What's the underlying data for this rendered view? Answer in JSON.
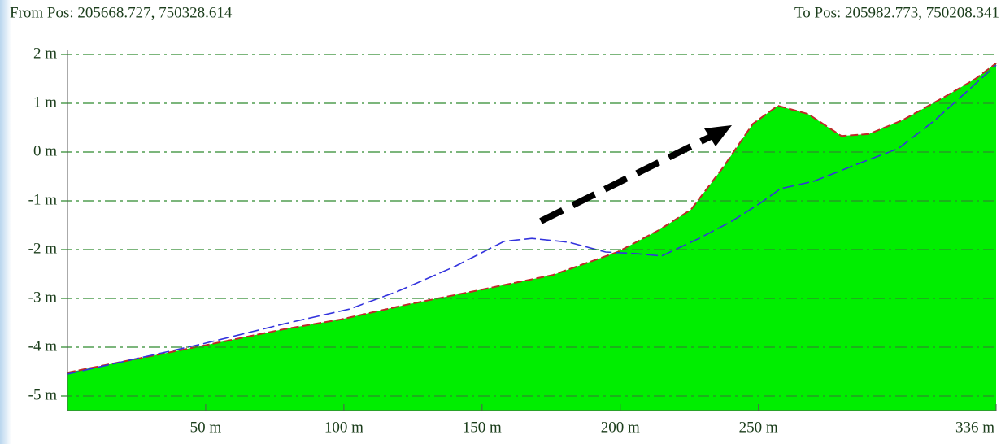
{
  "chart_data": {
    "type": "area",
    "from_label": "From Pos: 205668.727, 750328.614",
    "to_label": "To Pos: 205982.773, 750208.341",
    "xlim": [
      0,
      336
    ],
    "ylim": [
      -5.3,
      2.1
    ],
    "xticks": [
      {
        "value": 50,
        "label": "50 m"
      },
      {
        "value": 100,
        "label": "100 m"
      },
      {
        "value": 150,
        "label": "150 m"
      },
      {
        "value": 200,
        "label": "200 m"
      },
      {
        "value": 250,
        "label": "250 m"
      },
      {
        "value": 336,
        "label": "336 m"
      }
    ],
    "yticks": [
      {
        "value": 2,
        "label": "2 m"
      },
      {
        "value": 1,
        "label": "1 m"
      },
      {
        "value": 0,
        "label": "0 m"
      },
      {
        "value": -1,
        "label": "-1 m"
      },
      {
        "value": -2,
        "label": "-2 m"
      },
      {
        "value": -3,
        "label": "-3 m"
      },
      {
        "value": -4,
        "label": "-4 m"
      },
      {
        "value": -5,
        "label": "-5 m"
      }
    ],
    "grid": true,
    "series": [
      {
        "kind": "area",
        "color": "#00ee00",
        "outline": "#c0282a",
        "x": [
          0,
          49,
          78.5,
          99,
          122.6,
          149,
          175.6,
          199,
          214,
          225.6,
          237,
          248,
          257,
          268,
          280,
          290,
          302,
          317,
          328.5,
          336
        ],
        "values": [
          -4.52,
          -3.97,
          -3.63,
          -3.43,
          -3.13,
          -2.83,
          -2.52,
          -2.05,
          -1.6,
          -1.18,
          -0.33,
          0.58,
          0.95,
          0.78,
          0.33,
          0.37,
          0.65,
          1.12,
          1.5,
          1.82
        ]
      },
      {
        "kind": "line",
        "color": "#3333dd",
        "x": [
          0,
          49,
          78.5,
          102,
          119.7,
          140,
          158,
          168,
          181.5,
          194.7,
          205,
          215,
          228.5,
          240,
          250.6,
          258,
          270,
          287,
          300.6,
          313.8,
          336
        ],
        "values": [
          -4.55,
          -3.93,
          -3.52,
          -3.22,
          -2.85,
          -2.35,
          -1.83,
          -1.77,
          -1.85,
          -2.05,
          -2.08,
          -2.13,
          -1.77,
          -1.43,
          -1.05,
          -0.75,
          -0.6,
          -0.22,
          0.07,
          0.65,
          1.78
        ]
      }
    ]
  }
}
